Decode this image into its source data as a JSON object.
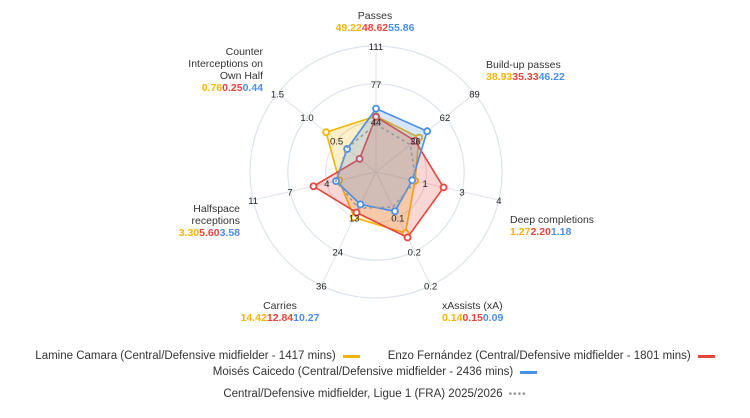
{
  "chart_data": {
    "type": "radar",
    "axes": [
      {
        "label": "Passes",
        "ticks": [
          "44",
          "77",
          "111"
        ],
        "max": 111
      },
      {
        "label": "Build-up passes",
        "ticks": [
          "36",
          "62",
          "89"
        ],
        "max": 89
      },
      {
        "label": "Deep completions",
        "ticks": [
          "1",
          "3",
          "4"
        ],
        "max": 4
      },
      {
        "label": "xAssists (xA)",
        "ticks": [
          "0.1",
          "0.2",
          "0.2"
        ],
        "max": 0.26
      },
      {
        "label": "Carries",
        "ticks": [
          "13",
          "24",
          "36"
        ],
        "max": 36
      },
      {
        "label": "Halfspace receptions",
        "ticks": [
          "4",
          "7",
          "11"
        ],
        "max": 11
      },
      {
        "label": "Counter Interceptions on Own Half",
        "ticks": [
          "0.5",
          "1.0",
          "1.5"
        ],
        "max": 1.5
      }
    ],
    "ring_fractions": [
      0.4,
      0.7,
      1.0
    ],
    "series": [
      {
        "name": "Lamine Camara (Central/Defensive midfielder - 1417 mins)",
        "color": "#f4b400",
        "values": [
          49.22,
          38.93,
          1.27,
          0.14,
          14.42,
          3.3,
          0.76
        ],
        "labels": [
          "49.22",
          "38.93",
          "1.27",
          "0.14",
          "14.42",
          "3.30",
          "0.76"
        ]
      },
      {
        "name": "Enzo Fernández (Central/Defensive midfielder - 1801 mins)",
        "color": "#e8453c",
        "values": [
          48.62,
          35.33,
          2.2,
          0.15,
          12.84,
          5.6,
          0.25
        ],
        "labels": [
          "48.62",
          "35.33",
          "2.20",
          "0.15",
          "12.84",
          "5.60",
          "0.25"
        ]
      },
      {
        "name": "Moisés Caicedo (Central/Defensive midfielder - 2436 mins)",
        "color": "#4a8fe7",
        "values": [
          55.86,
          46.22,
          1.18,
          0.09,
          10.27,
          3.58,
          0.44
        ],
        "labels": [
          "55.86",
          "46.22",
          "1.18",
          "0.09",
          "10.27",
          "3.58",
          "0.44"
        ]
      }
    ],
    "benchmark": {
      "name": "Central/Defensive midfielder, Ligue 1 (FRA) 2025/2026",
      "color": "#999999",
      "style": "dashed",
      "values": [
        42,
        31,
        1.3,
        0.08,
        11.5,
        3.6,
        0.45
      ]
    },
    "grid": true,
    "legend": "bottom"
  }
}
